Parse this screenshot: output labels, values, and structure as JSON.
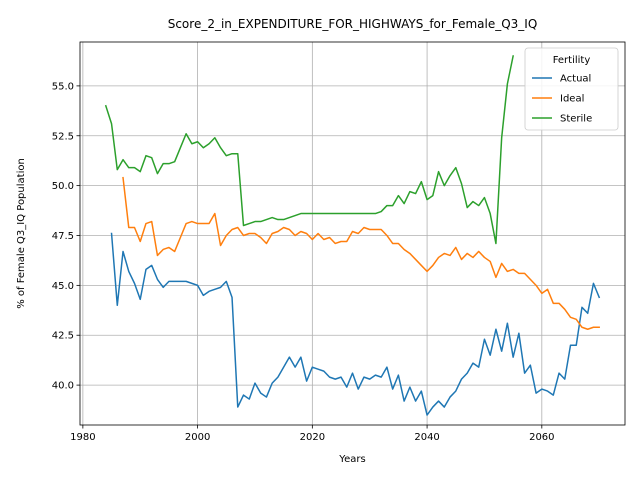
{
  "chart_data": {
    "type": "line",
    "title": "Score_2_in_EXPENDITURE_FOR_HIGHWAYS_for_Female_Q3_IQ",
    "xlabel": "Years",
    "ylabel": "% of Female Q3_IQ Population",
    "xlim": [
      1979.5,
      2074.5
    ],
    "ylim": [
      38.0,
      57.2
    ],
    "xticks": [
      1980,
      2000,
      2020,
      2040,
      2060
    ],
    "yticks": [
      40.0,
      42.5,
      45.0,
      47.5,
      50.0,
      52.5,
      55.0
    ],
    "xtick_labels": [
      "1980",
      "2000",
      "2020",
      "2040",
      "2060"
    ],
    "ytick_labels": [
      "40.0",
      "42.5",
      "45.0",
      "47.5",
      "50.0",
      "52.5",
      "55.0"
    ],
    "grid": true,
    "legend": {
      "title": "Fertility",
      "placement": "top-right"
    },
    "series": [
      {
        "name": "Actual",
        "color": "#1f77b4",
        "x": [
          1985,
          1986,
          1987,
          1988,
          1989,
          1990,
          1991,
          1992,
          1993,
          1994,
          1995,
          1996,
          1997,
          1998,
          1999,
          2000,
          2001,
          2002,
          2003,
          2004,
          2005,
          2006,
          2007,
          2008,
          2009,
          2010,
          2011,
          2012,
          2013,
          2014,
          2015,
          2016,
          2017,
          2018,
          2019,
          2020,
          2021,
          2022,
          2023,
          2024,
          2025,
          2026,
          2027,
          2028,
          2029,
          2030,
          2031,
          2032,
          2033,
          2034,
          2035,
          2036,
          2037,
          2038,
          2039,
          2040,
          2041,
          2042,
          2043,
          2044,
          2045,
          2046,
          2047,
          2048,
          2049,
          2050,
          2051,
          2052,
          2053,
          2054,
          2055,
          2056,
          2057,
          2058,
          2059,
          2060,
          2061,
          2062,
          2063,
          2064,
          2065,
          2066,
          2067,
          2068,
          2069,
          2070
        ],
        "values": [
          47.6,
          44.0,
          46.7,
          45.7,
          45.1,
          44.3,
          45.8,
          46.0,
          45.3,
          44.9,
          45.2,
          45.2,
          45.2,
          45.2,
          45.1,
          45.0,
          44.5,
          44.7,
          44.8,
          44.9,
          45.2,
          44.4,
          38.9,
          39.5,
          39.3,
          40.1,
          39.6,
          39.4,
          40.1,
          40.4,
          40.9,
          41.4,
          40.9,
          41.4,
          40.2,
          40.9,
          40.8,
          40.7,
          40.4,
          40.3,
          40.4,
          39.9,
          40.6,
          39.8,
          40.4,
          40.3,
          40.5,
          40.4,
          40.9,
          39.8,
          40.5,
          39.2,
          39.9,
          39.2,
          39.7,
          38.5,
          38.9,
          39.2,
          38.9,
          39.4,
          39.7,
          40.3,
          40.6,
          41.1,
          40.9,
          42.3,
          41.5,
          42.8,
          41.7,
          43.1,
          41.4,
          42.6,
          40.6,
          41.0,
          39.6,
          39.8,
          39.7,
          39.5,
          40.6,
          40.3,
          42.0,
          42.0,
          43.9,
          43.6,
          45.1,
          44.4
        ]
      },
      {
        "name": "Ideal",
        "color": "#ff7f0e",
        "x": [
          1987,
          1988,
          1989,
          1990,
          1991,
          1992,
          1993,
          1994,
          1995,
          1996,
          1997,
          1998,
          1999,
          2000,
          2001,
          2002,
          2003,
          2004,
          2005,
          2006,
          2007,
          2008,
          2009,
          2010,
          2011,
          2012,
          2013,
          2014,
          2015,
          2016,
          2017,
          2018,
          2019,
          2020,
          2021,
          2022,
          2023,
          2024,
          2025,
          2026,
          2027,
          2028,
          2029,
          2030,
          2031,
          2032,
          2033,
          2034,
          2035,
          2036,
          2037,
          2038,
          2039,
          2040,
          2041,
          2042,
          2043,
          2044,
          2045,
          2046,
          2047,
          2048,
          2049,
          2050,
          2051,
          2052,
          2053,
          2054,
          2055,
          2056,
          2057,
          2058,
          2059,
          2060,
          2061,
          2062,
          2063,
          2064,
          2065,
          2066,
          2067,
          2068,
          2069,
          2070
        ],
        "values": [
          50.4,
          47.9,
          47.9,
          47.2,
          48.1,
          48.2,
          46.5,
          46.8,
          46.9,
          46.7,
          47.4,
          48.1,
          48.2,
          48.1,
          48.1,
          48.1,
          48.6,
          47.0,
          47.5,
          47.8,
          47.9,
          47.5,
          47.6,
          47.6,
          47.4,
          47.1,
          47.6,
          47.7,
          47.9,
          47.8,
          47.5,
          47.7,
          47.6,
          47.3,
          47.6,
          47.3,
          47.4,
          47.1,
          47.2,
          47.2,
          47.7,
          47.6,
          47.9,
          47.8,
          47.8,
          47.8,
          47.5,
          47.1,
          47.1,
          46.8,
          46.6,
          46.3,
          46.0,
          45.7,
          46.0,
          46.4,
          46.6,
          46.5,
          46.9,
          46.3,
          46.6,
          46.4,
          46.7,
          46.4,
          46.2,
          45.4,
          46.1,
          45.7,
          45.8,
          45.6,
          45.6,
          45.3,
          45.0,
          44.6,
          44.8,
          44.1,
          44.1,
          43.8,
          43.4,
          43.3,
          42.9,
          42.8,
          42.9,
          42.9
        ]
      },
      {
        "name": "Sterile",
        "color": "#2ca02c",
        "x": [
          1984,
          1985,
          1986,
          1987,
          1988,
          1989,
          1990,
          1991,
          1992,
          1993,
          1994,
          1995,
          1996,
          1997,
          1998,
          1999,
          2000,
          2001,
          2002,
          2003,
          2004,
          2005,
          2006,
          2007,
          2008,
          2009,
          2010,
          2011,
          2012,
          2013,
          2014,
          2015,
          2016,
          2017,
          2018,
          2019,
          2020,
          2021,
          2022,
          2023,
          2024,
          2025,
          2026,
          2027,
          2028,
          2029,
          2030,
          2031,
          2032,
          2033,
          2034,
          2035,
          2036,
          2037,
          2038,
          2039,
          2040,
          2041,
          2042,
          2043,
          2044,
          2045,
          2046,
          2047,
          2048,
          2049,
          2050,
          2051,
          2052,
          2053,
          2054,
          2055
        ],
        "values": [
          54.0,
          53.1,
          50.8,
          51.3,
          50.9,
          50.9,
          50.7,
          51.5,
          51.4,
          50.6,
          51.1,
          51.1,
          51.2,
          51.9,
          52.6,
          52.1,
          52.2,
          51.9,
          52.1,
          52.4,
          51.9,
          51.5,
          51.6,
          51.6,
          48.0,
          48.1,
          48.2,
          48.2,
          48.3,
          48.4,
          48.3,
          48.3,
          48.4,
          48.5,
          48.6,
          48.6,
          48.6,
          48.6,
          48.6,
          48.6,
          48.6,
          48.6,
          48.6,
          48.6,
          48.6,
          48.6,
          48.6,
          48.6,
          48.7,
          49.0,
          49.0,
          49.5,
          49.1,
          49.7,
          49.6,
          50.2,
          49.3,
          49.5,
          50.7,
          50.0,
          50.5,
          50.9,
          50.1,
          48.9,
          49.2,
          49.0,
          49.4,
          48.6,
          47.1,
          52.4,
          55.1,
          56.5
        ]
      }
    ]
  }
}
